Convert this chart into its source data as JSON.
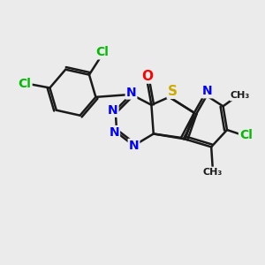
{
  "bg_color": "#ebebeb",
  "bond_color": "#1a1a1a",
  "bond_width": 1.8,
  "atom_colors": {
    "C": "#1a1a1a",
    "N": "#0000ff",
    "S": "#ccaa00",
    "O": "#ff0000",
    "Cl": "#00bb00",
    "H": "#1a1a1a"
  },
  "font_size": 10
}
